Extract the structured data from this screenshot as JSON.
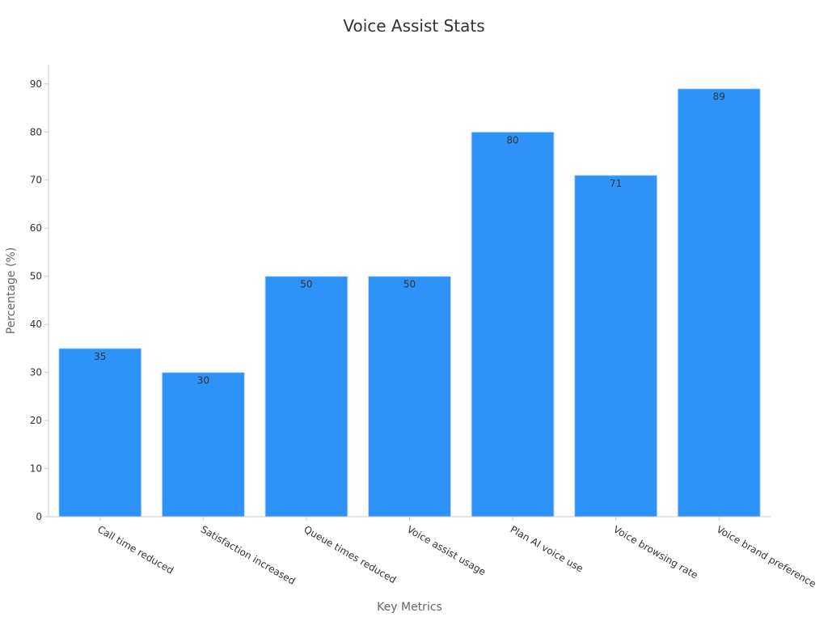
{
  "chart_data": {
    "type": "bar",
    "title": "Voice Assist Stats",
    "xlabel": "Key Metrics",
    "ylabel": "Percentage (%)",
    "categories": [
      "Call time reduced",
      "Satisfaction increased",
      "Queue times reduced",
      "Voice assist usage",
      "Plan AI voice use",
      "Voice browsing rate",
      "Voice brand preference"
    ],
    "values": [
      35,
      30,
      50,
      50,
      80,
      71,
      89
    ],
    "ylim": [
      0,
      94
    ],
    "yticks": [
      0,
      10,
      20,
      30,
      40,
      50,
      60,
      70,
      80,
      90
    ],
    "grid": false,
    "legend": "none",
    "data_labels": true,
    "colors": {
      "bar": "#2e93f8",
      "bar_edge": "#c8e0fb",
      "axis": "#cccccc",
      "text": "#333333",
      "axis_title": "#666666"
    }
  }
}
